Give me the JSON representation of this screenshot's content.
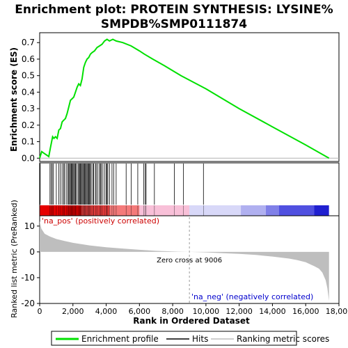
{
  "chart_data": {
    "type": "line",
    "title": "Enrichment plot: PROTEIN SYNTHESIS: LYSINE%\nSMPDB%SMP0111874",
    "es_panel": {
      "ylabel": "Enrichment score (ES)",
      "ylim": [
        -0.02,
        0.76
      ],
      "yticks": [
        0.0,
        0.1,
        0.2,
        0.3,
        0.4,
        0.5,
        0.6,
        0.7
      ],
      "ytick_labels": [
        "0.0",
        "0.1",
        "0.2",
        "0.3",
        "0.4",
        "0.5",
        "0.6",
        "0.7"
      ],
      "line_color": "#00e000",
      "x": [
        0,
        120,
        250,
        400,
        550,
        640,
        700,
        780,
        860,
        950,
        1050,
        1150,
        1250,
        1350,
        1450,
        1550,
        1650,
        1750,
        1850,
        1950,
        2050,
        2150,
        2250,
        2350,
        2450,
        2550,
        2650,
        2750,
        2850,
        2950,
        3050,
        3150,
        3300,
        3450,
        3600,
        3750,
        3900,
        4050,
        4200,
        4400,
        4600,
        5000,
        5500,
        6000,
        6300,
        6800,
        7500,
        8500,
        10000,
        12000,
        14000,
        16000,
        17400
      ],
      "y": [
        0.0,
        0.04,
        0.03,
        0.02,
        0.01,
        0.06,
        0.09,
        0.13,
        0.12,
        0.13,
        0.12,
        0.17,
        0.18,
        0.22,
        0.23,
        0.24,
        0.27,
        0.31,
        0.35,
        0.36,
        0.37,
        0.4,
        0.43,
        0.45,
        0.44,
        0.48,
        0.55,
        0.58,
        0.6,
        0.61,
        0.63,
        0.64,
        0.65,
        0.67,
        0.68,
        0.69,
        0.71,
        0.72,
        0.71,
        0.72,
        0.71,
        0.7,
        0.68,
        0.65,
        0.63,
        0.6,
        0.56,
        0.5,
        0.42,
        0.3,
        0.19,
        0.08,
        0.0
      ]
    },
    "hits": [
      30,
      620,
      690,
      760,
      830,
      1000,
      1150,
      1250,
      1350,
      1450,
      1500,
      1600,
      1700,
      1750,
      1800,
      1850,
      1900,
      1950,
      2000,
      2050,
      2100,
      2150,
      2200,
      2300,
      2350,
      2400,
      2450,
      2500,
      2550,
      2600,
      2650,
      2700,
      2750,
      2800,
      2850,
      2900,
      2950,
      3000,
      3050,
      3100,
      3200,
      3250,
      3350,
      3400,
      3500,
      3600,
      3650,
      3700,
      3800,
      3900,
      4000,
      4050,
      4100,
      4200,
      4350,
      4450,
      4600,
      5200,
      5500,
      5900,
      6250,
      6350,
      6400,
      6900,
      8100,
      8650,
      9850
    ],
    "rank_panel": {
      "ylabel": "Ranked list metric (PreRanked)",
      "xlabel": "Rank in Ordered Dataset",
      "ylim": [
        -20,
        14
      ],
      "yticks": [
        10,
        0,
        -10,
        -20
      ],
      "ytick_labels": [
        "10",
        "0",
        "-10",
        "-20"
      ],
      "xlim": [
        0,
        18000
      ],
      "xticks": [
        0,
        2000,
        4000,
        6000,
        8000,
        10000,
        12000,
        14000,
        16000,
        18000
      ],
      "xtick_labels": [
        "0",
        "2,000",
        "4,000",
        "6,000",
        "8,000",
        "10,000",
        "12,000",
        "14,000",
        "16,000",
        "18,000"
      ],
      "x": [
        0,
        100,
        300,
        600,
        1000,
        1500,
        2000,
        3000,
        4000,
        5000,
        6000,
        7000,
        8000,
        9000,
        10000,
        11000,
        12000,
        13000,
        14000,
        15000,
        15500,
        16000,
        16500,
        16800,
        17000,
        17200,
        17300,
        17400
      ],
      "y": [
        12,
        9,
        7,
        6,
        5,
        4.2,
        3.5,
        2.5,
        1.8,
        1.3,
        0.8,
        0.4,
        0.15,
        0,
        -0.2,
        -0.5,
        -0.8,
        -1.2,
        -1.8,
        -2.6,
        -3.2,
        -4,
        -5.5,
        -6.5,
        -8,
        -11,
        -14,
        -19
      ],
      "n_genes": 17400,
      "zero_cross_label": "Zero cross at 9006",
      "zero_cross": 9006,
      "pos_label": "'na_pos' (positively correlated)",
      "neg_label": "'na_neg' (negatively correlated)",
      "fill_color": "#bebebe"
    },
    "color_bar_segments": [
      {
        "x0": 0,
        "x1": 2500,
        "color": "#e60000"
      },
      {
        "x0": 2500,
        "x1": 4200,
        "color": "#f04040"
      },
      {
        "x0": 4200,
        "x1": 6000,
        "color": "#f47a7a"
      },
      {
        "x0": 6000,
        "x1": 9000,
        "color": "#f8c0d8"
      },
      {
        "x0": 9000,
        "x1": 12100,
        "color": "#d8d8f8"
      },
      {
        "x0": 12100,
        "x1": 13600,
        "color": "#b0b0f0"
      },
      {
        "x0": 13600,
        "x1": 14400,
        "color": "#8080e8"
      },
      {
        "x0": 14400,
        "x1": 16500,
        "color": "#5050e0"
      },
      {
        "x0": 16500,
        "x1": 17400,
        "color": "#2020d0"
      }
    ],
    "legend": {
      "items": [
        {
          "label": "Enrichment profile",
          "color": "#00e000"
        },
        {
          "label": "Hits",
          "color": "#000000"
        },
        {
          "label": "Ranking metric scores",
          "color": "#bebebe"
        }
      ]
    }
  }
}
